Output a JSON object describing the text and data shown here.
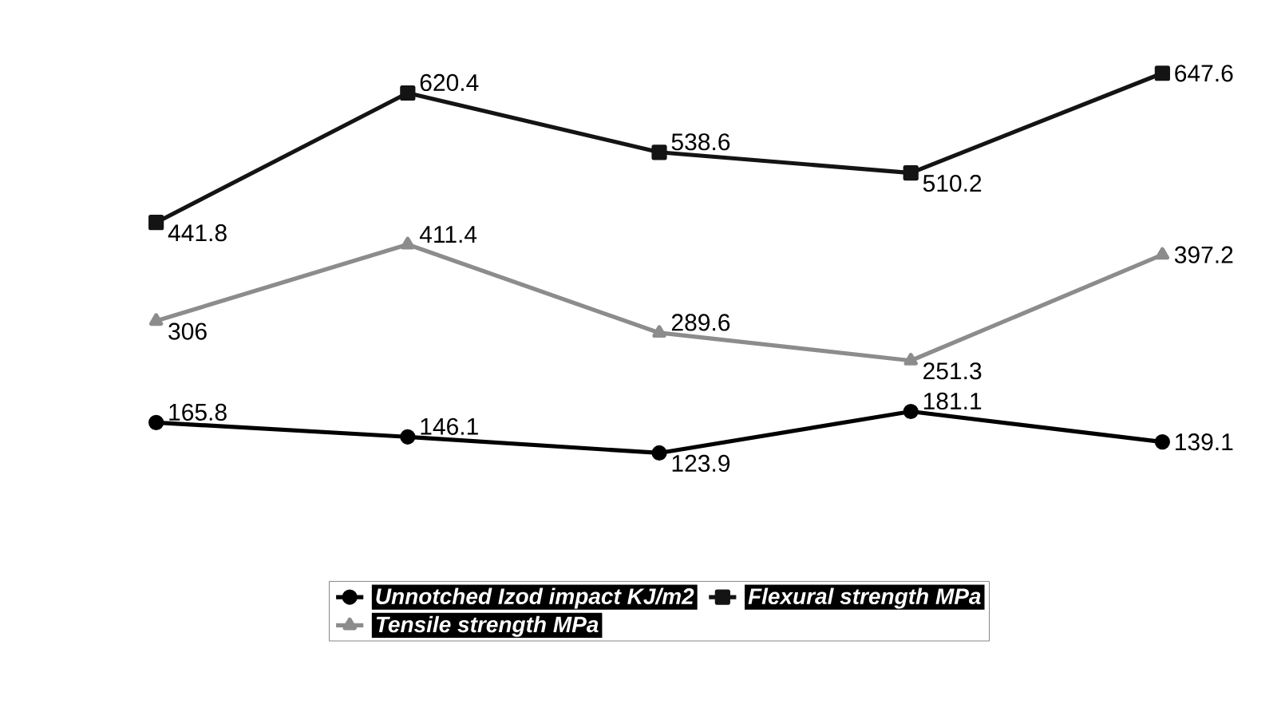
{
  "chart_data": {
    "type": "line",
    "categories": [
      null,
      null,
      null,
      null,
      null
    ],
    "tick_labels": false,
    "legend": "bottom",
    "series": [
      {
        "name": "Unnotched Izod impact   KJ/m2",
        "color": "#000000",
        "marker": "circle",
        "values": [
          165.8,
          146.1,
          123.9,
          181.1,
          139.1
        ],
        "value_labels": [
          "165.8",
          "146.1",
          "123.9",
          "181.1",
          "139.1"
        ]
      },
      {
        "name": "Flexural strength   MPa",
        "color": "#141414",
        "marker": "square",
        "values": [
          441.8,
          620.4,
          538.6,
          510.2,
          647.6
        ],
        "value_labels": [
          "441.8",
          "620.4",
          "538.6",
          "510.2",
          "647.6"
        ]
      },
      {
        "name": "Tensile strength  MPa",
        "color": "#8c8c8c",
        "marker": "triangle",
        "values": [
          306,
          411.4,
          289.6,
          251.3,
          397.2
        ],
        "value_labels": [
          "306",
          "411.4",
          "289.6",
          "251.3",
          "397.2"
        ]
      }
    ]
  }
}
